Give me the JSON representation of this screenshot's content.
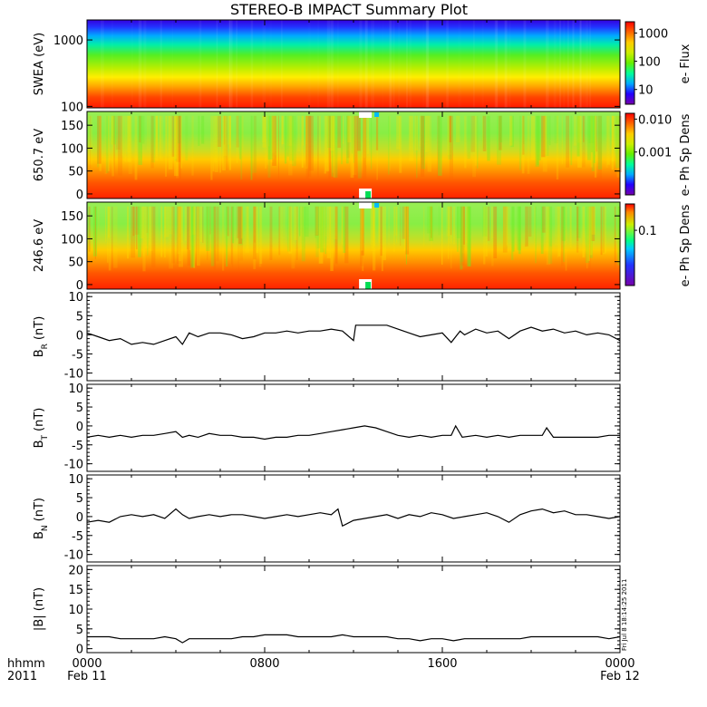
{
  "title": "STEREO-B IMPACT Summary Plot",
  "x_axis": {
    "ticks": [
      "0000",
      "0800",
      "1600",
      "0000"
    ],
    "tick_hours": [
      0,
      8,
      16,
      24
    ],
    "date_labels": [
      "Feb 11",
      "Feb 12"
    ],
    "row_label_top": "hhmm",
    "row_label_bottom": "2011",
    "range_hours": [
      0,
      24
    ]
  },
  "timestamp": "Fri Jul  8 18:14:25 2011",
  "colors": {
    "spectrum": [
      "#7700aa",
      "#2200ff",
      "#00aaff",
      "#00ff99",
      "#66ee00",
      "#ccee00",
      "#ffcc00",
      "#ff6600",
      "#ff0000"
    ],
    "line": "#000000",
    "gap": "#ffffff"
  },
  "chart_data": [
    {
      "type": "heatmap",
      "name": "swea",
      "ylabel": "SWEA (eV)",
      "yscale": "log",
      "ylim": [
        95,
        2000
      ],
      "yticks": [
        "1000",
        "100"
      ],
      "ytick_values": [
        1000,
        100
      ],
      "colorbar_label": "e- Flux",
      "colorbar_ticks": [
        "1000",
        "100",
        "10"
      ],
      "colorbar_tick_values": [
        1000,
        100,
        10
      ],
      "colorbar_scale": "log",
      "colorbar_range": [
        3,
        2500
      ]
    },
    {
      "type": "heatmap",
      "name": "pad-650",
      "ylabel": "650.7 eV",
      "ylim": [
        -10,
        180
      ],
      "yticks": [
        "150",
        "100",
        "50",
        "0"
      ],
      "ytick_values": [
        150,
        100,
        50,
        0
      ],
      "colorbar_label": "e- Ph Sp Dens",
      "colorbar_ticks": [
        "0.010",
        "0.001"
      ],
      "colorbar_tick_values": [
        0.01,
        0.001
      ],
      "colorbar_scale": "log",
      "colorbar_range": [
        5e-05,
        0.015
      ]
    },
    {
      "type": "heatmap",
      "name": "pad-246",
      "ylabel": "246.6 eV",
      "ylim": [
        -10,
        180
      ],
      "yticks": [
        "150",
        "100",
        "50",
        "0"
      ],
      "ytick_values": [
        150,
        100,
        50,
        0
      ],
      "colorbar_label": "e- Ph Sp Dens",
      "colorbar_ticks": [
        "0.1"
      ],
      "colorbar_tick_values": [
        0.1
      ],
      "colorbar_scale": "log",
      "colorbar_range": [
        0.01,
        0.3
      ]
    },
    {
      "type": "line",
      "name": "br",
      "ylabel": "B",
      "ylabel_sub": "R",
      "ylabel_unit": "(nT)",
      "ylim": [
        -12,
        11
      ],
      "yticks": [
        "10",
        "5",
        "0",
        "-5",
        "-10"
      ],
      "ytick_values": [
        10,
        5,
        0,
        -5,
        -10
      ],
      "x": [
        0,
        0.5,
        1,
        1.5,
        2,
        2.5,
        3,
        3.5,
        4,
        4.3,
        4.6,
        5,
        5.5,
        6,
        6.5,
        7,
        7.5,
        8,
        8.5,
        9,
        9.5,
        10,
        10.5,
        11,
        11.5,
        12,
        12.1,
        12.5,
        13,
        13.5,
        14,
        14.5,
        15,
        15.5,
        16,
        16.4,
        16.8,
        17,
        17.5,
        18,
        18.5,
        19,
        19.5,
        20,
        20.5,
        21,
        21.5,
        22,
        22.5,
        23,
        23.5,
        24
      ],
      "y": [
        0.5,
        -0.5,
        -1.5,
        -1.0,
        -2.5,
        -2.0,
        -2.5,
        -1.5,
        -0.5,
        -2.5,
        0.5,
        -0.5,
        0.5,
        0.5,
        0,
        -1.0,
        -0.5,
        0.5,
        0.5,
        1.0,
        0.5,
        1.0,
        1.0,
        1.5,
        1.0,
        -1.5,
        2.5,
        2.5,
        2.5,
        2.5,
        1.5,
        0.5,
        -0.5,
        0,
        0.5,
        -2.0,
        1.0,
        0,
        1.5,
        0.5,
        1.0,
        -1.0,
        1.0,
        2.0,
        1.0,
        1.5,
        0.5,
        1.0,
        0,
        0.5,
        0,
        -1.5
      ]
    },
    {
      "type": "line",
      "name": "bt",
      "ylabel": "B",
      "ylabel_sub": "T",
      "ylabel_unit": "(nT)",
      "ylim": [
        -12,
        11
      ],
      "yticks": [
        "10",
        "5",
        "0",
        "-5",
        "-10"
      ],
      "ytick_values": [
        10,
        5,
        0,
        -5,
        -10
      ],
      "x": [
        0,
        0.5,
        1,
        1.5,
        2,
        2.5,
        3,
        3.5,
        4,
        4.3,
        4.6,
        5,
        5.5,
        6,
        6.5,
        7,
        7.5,
        8,
        8.5,
        9,
        9.5,
        10,
        10.5,
        11,
        11.5,
        12,
        12.5,
        13,
        13.5,
        14,
        14.5,
        15,
        15.5,
        16,
        16.4,
        16.6,
        16.9,
        17.5,
        18,
        18.5,
        19,
        19.5,
        20,
        20.5,
        20.7,
        21,
        21.5,
        22,
        22.5,
        23,
        23.5,
        24
      ],
      "y": [
        -3.0,
        -2.5,
        -3.0,
        -2.5,
        -3.0,
        -2.5,
        -2.5,
        -2.0,
        -1.5,
        -3.0,
        -2.5,
        -3.0,
        -2.0,
        -2.5,
        -2.5,
        -3.0,
        -3.0,
        -3.5,
        -3.0,
        -3.0,
        -2.5,
        -2.5,
        -2.0,
        -1.5,
        -1.0,
        -0.5,
        0,
        -0.5,
        -1.5,
        -2.5,
        -3.0,
        -2.5,
        -3.0,
        -2.5,
        -2.5,
        0,
        -3.0,
        -2.5,
        -3.0,
        -2.5,
        -3.0,
        -2.5,
        -2.5,
        -2.5,
        -0.5,
        -3.0,
        -3.0,
        -3.0,
        -3.0,
        -3.0,
        -2.5,
        -2.5
      ]
    },
    {
      "type": "line",
      "name": "bn",
      "ylabel": "B",
      "ylabel_sub": "N",
      "ylabel_unit": "(nT)",
      "ylim": [
        -12,
        11
      ],
      "yticks": [
        "10",
        "5",
        "0",
        "-5",
        "-10"
      ],
      "ytick_values": [
        10,
        5,
        0,
        -5,
        -10
      ],
      "x": [
        0,
        0.5,
        1,
        1.5,
        2,
        2.5,
        3,
        3.5,
        4,
        4.3,
        4.6,
        5,
        5.5,
        6,
        6.5,
        7,
        7.5,
        8,
        8.5,
        9,
        9.5,
        10,
        10.5,
        11,
        11.3,
        11.5,
        12,
        12.5,
        13,
        13.5,
        14,
        14.5,
        15,
        15.5,
        16,
        16.5,
        17,
        17.5,
        18,
        18.5,
        19,
        19.5,
        20,
        20.5,
        21,
        21.5,
        22,
        22.5,
        23,
        23.5,
        24
      ],
      "y": [
        -1.5,
        -1.0,
        -1.5,
        0,
        0.5,
        0,
        0.5,
        -0.5,
        2.0,
        0.5,
        -0.5,
        0,
        0.5,
        0,
        0.5,
        0.5,
        0,
        -0.5,
        0,
        0.5,
        0,
        0.5,
        1.0,
        0.5,
        2.0,
        -2.5,
        -1.0,
        -0.5,
        0,
        0.5,
        -0.5,
        0.5,
        0,
        1.0,
        0.5,
        -0.5,
        0,
        0.5,
        1.0,
        0,
        -1.5,
        0.5,
        1.5,
        2.0,
        1.0,
        1.5,
        0.5,
        0.5,
        0,
        -0.5,
        0
      ]
    },
    {
      "type": "line",
      "name": "bmag",
      "ylabel": "|B| (nT)",
      "ylim": [
        -1,
        21
      ],
      "yticks": [
        "20",
        "15",
        "10",
        "5",
        "0"
      ],
      "ytick_values": [
        20,
        15,
        10,
        5,
        0
      ],
      "x": [
        0,
        0.5,
        1,
        1.5,
        2,
        2.5,
        3,
        3.5,
        4,
        4.3,
        4.6,
        5,
        5.5,
        6,
        6.5,
        7,
        7.5,
        8,
        8.5,
        9,
        9.5,
        10,
        10.5,
        11,
        11.5,
        12,
        12.5,
        13,
        13.5,
        14,
        14.5,
        15,
        15.5,
        16,
        16.5,
        17,
        17.5,
        18,
        18.5,
        19,
        19.5,
        20,
        20.5,
        21,
        21.5,
        22,
        22.5,
        23,
        23.5,
        24
      ],
      "y": [
        3.0,
        3.0,
        3.0,
        2.5,
        2.5,
        2.5,
        2.5,
        3.0,
        2.5,
        1.5,
        2.5,
        2.5,
        2.5,
        2.5,
        2.5,
        3.0,
        3.0,
        3.5,
        3.5,
        3.5,
        3.0,
        3.0,
        3.0,
        3.0,
        3.5,
        3.0,
        3.0,
        3.0,
        3.0,
        2.5,
        2.5,
        2.0,
        2.5,
        2.5,
        2.0,
        2.5,
        2.5,
        2.5,
        2.5,
        2.5,
        2.5,
        3.0,
        3.0,
        3.0,
        3.0,
        3.0,
        3.0,
        3.0,
        2.5,
        3.0
      ]
    }
  ]
}
